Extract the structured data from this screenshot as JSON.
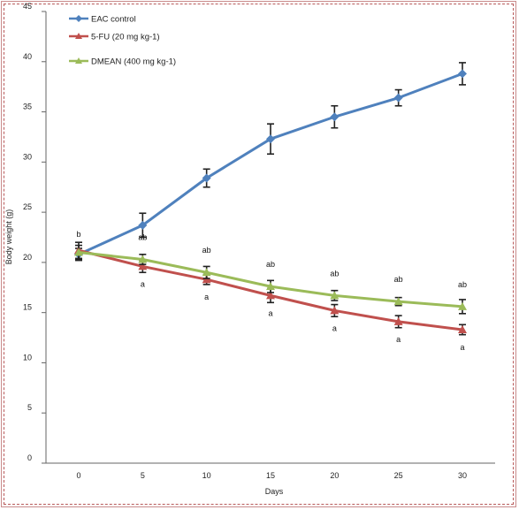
{
  "chart_data": {
    "type": "line",
    "xlabel": "Days",
    "ylabel": "Body weight (g)",
    "x": [
      0,
      5,
      10,
      15,
      20,
      25,
      30
    ],
    "xlim": [
      0,
      30
    ],
    "ylim": [
      0,
      45
    ],
    "yticks": [
      0,
      5,
      10,
      15,
      20,
      25,
      30,
      35,
      40,
      45
    ],
    "y_tick_labels": [
      "0",
      "5",
      "10",
      "15",
      "20",
      "25",
      "30",
      "35",
      "40",
      "45"
    ],
    "x_tick_labels": [
      "0",
      "5",
      "10",
      "15",
      "20",
      "25",
      "30"
    ],
    "legend_position": "top-left",
    "series": [
      {
        "name": "EAC control",
        "color": "#4f81bd",
        "marker": "diamond",
        "values": [
          20.8,
          23.7,
          28.4,
          32.3,
          34.5,
          36.4,
          38.8
        ],
        "errors": [
          0.6,
          1.2,
          0.9,
          1.5,
          1.1,
          0.8,
          1.1
        ],
        "annotations": [
          "b",
          "",
          "",
          "",
          "",
          "",
          ""
        ]
      },
      {
        "name": "5-FU (20 mg kg-1)",
        "color": "#c0504d",
        "marker": "triangle",
        "values": [
          21.2,
          19.6,
          18.3,
          16.7,
          15.2,
          14.1,
          13.3
        ],
        "errors": [
          0.8,
          0.6,
          0.5,
          0.7,
          0.6,
          0.6,
          0.5
        ],
        "annotations": [
          "",
          "a",
          "a",
          "a",
          "a",
          "a",
          "a"
        ]
      },
      {
        "name": "DMEAN (400 mg kg-1)",
        "color": "#9bbb59",
        "marker": "triangle",
        "values": [
          21.0,
          20.3,
          19.0,
          17.6,
          16.7,
          16.1,
          15.6
        ],
        "errors": [
          0.7,
          0.5,
          0.6,
          0.6,
          0.5,
          0.4,
          0.7
        ],
        "annotations": [
          "",
          "ab",
          "ab",
          "ab",
          "ab",
          "ab",
          "ab"
        ]
      }
    ]
  }
}
